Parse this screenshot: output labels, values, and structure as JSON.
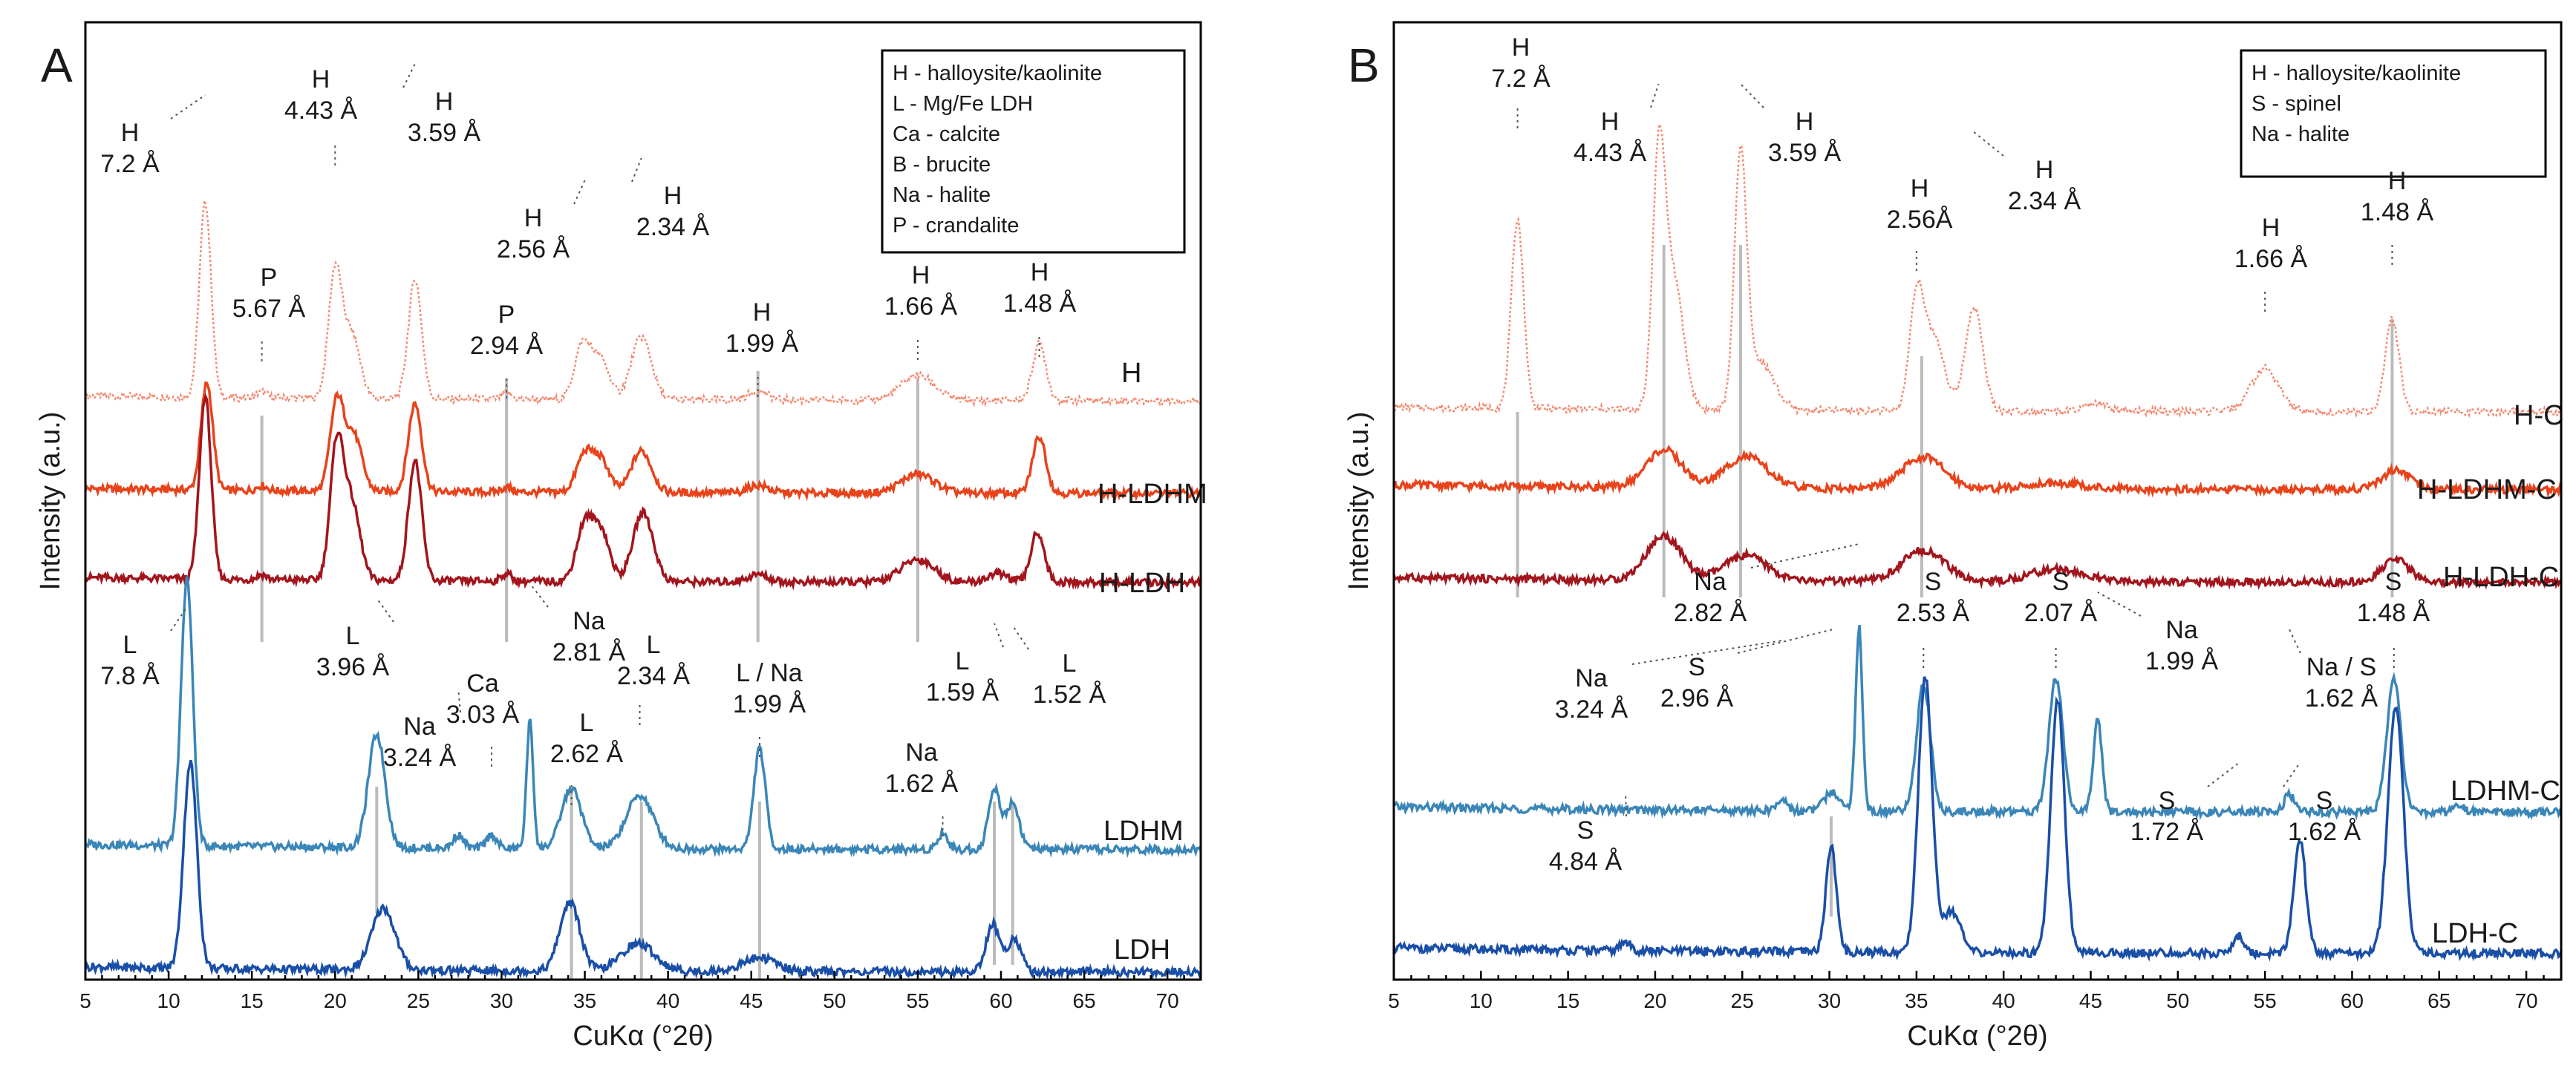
{
  "figure": {
    "colors": {
      "H": "#f28b73",
      "HLDHM": "#e8431b",
      "HLDH": "#a3151d",
      "LDHM": "#3b86b8",
      "LDH": "#1a4fa8"
    }
  },
  "chart_data": [
    {
      "type": "line",
      "panel": "A",
      "xlabel": "CuKα (°2θ)",
      "ylabel": "Intensity (a.u.)",
      "xlim": [
        5,
        72
      ],
      "xticks": [
        5,
        10,
        15,
        20,
        25,
        30,
        35,
        40,
        45,
        50,
        55,
        60,
        65,
        70
      ],
      "legend": {
        "placement": "top-right",
        "entries": [
          "H - halloysite/kaolinite",
          "L - Mg/Fe LDH",
          "Ca - calcite",
          "B - brucite",
          "Na - halite",
          "P - crandalite"
        ]
      },
      "series": [
        {
          "name": "H",
          "label": "H",
          "color_key": "H",
          "dashed": true,
          "baseline": 0.0,
          "peaks": [
            [
              12.2,
              1.55,
              0.35
            ],
            [
              15.6,
              0.05,
              0.3
            ],
            [
              20.0,
              1.0,
              0.4
            ],
            [
              21.0,
              0.5,
              0.5
            ],
            [
              24.8,
              0.95,
              0.4
            ],
            [
              30.3,
              0.05,
              0.3
            ],
            [
              34.9,
              0.45,
              0.5
            ],
            [
              36.0,
              0.3,
              0.5
            ],
            [
              38.4,
              0.5,
              0.6
            ],
            [
              45.4,
              0.07,
              0.6
            ],
            [
              55.0,
              0.2,
              1.0
            ],
            [
              62.3,
              0.45,
              0.4
            ]
          ]
        },
        {
          "name": "H-LDHM",
          "label": "H-LDHM",
          "color_key": "HLDHM",
          "dashed": false,
          "baseline": 0.0,
          "peaks": [
            [
              12.3,
              0.85,
              0.35
            ],
            [
              15.6,
              0.04,
              0.3
            ],
            [
              20.1,
              0.7,
              0.4
            ],
            [
              21.1,
              0.45,
              0.5
            ],
            [
              24.8,
              0.7,
              0.4
            ],
            [
              30.3,
              0.04,
              0.3
            ],
            [
              35.0,
              0.3,
              0.5
            ],
            [
              36.0,
              0.24,
              0.5
            ],
            [
              38.4,
              0.33,
              0.6
            ],
            [
              45.4,
              0.06,
              0.6
            ],
            [
              55.0,
              0.15,
              1.0
            ],
            [
              62.3,
              0.45,
              0.4
            ]
          ]
        },
        {
          "name": "H-LDH",
          "label": "H-LDH",
          "color_key": "HLDH",
          "dashed": false,
          "baseline": 0.0,
          "peaks": [
            [
              12.2,
              1.45,
              0.35
            ],
            [
              15.6,
              0.04,
              0.3
            ],
            [
              20.1,
              1.05,
              0.4
            ],
            [
              21.0,
              0.6,
              0.5
            ],
            [
              24.8,
              0.95,
              0.4
            ],
            [
              30.3,
              0.06,
              0.3
            ],
            [
              35.0,
              0.45,
              0.5
            ],
            [
              36.0,
              0.38,
              0.5
            ],
            [
              38.5,
              0.55,
              0.6
            ],
            [
              45.4,
              0.06,
              0.6
            ],
            [
              55.0,
              0.18,
              1.0
            ],
            [
              59.8,
              0.07,
              0.6
            ],
            [
              62.2,
              0.4,
              0.4
            ]
          ]
        },
        {
          "name": "LDHM",
          "label": "LDHM",
          "color_key": "LDHM",
          "dashed": false,
          "baseline": 0.0,
          "peaks": [
            [
              11.1,
              2.0,
              0.35
            ],
            [
              22.5,
              0.85,
              0.5
            ],
            [
              27.4,
              0.1,
              0.3
            ],
            [
              29.4,
              0.1,
              0.3
            ],
            [
              31.7,
              0.95,
              0.2
            ],
            [
              34.2,
              0.45,
              0.6
            ],
            [
              38.3,
              0.4,
              0.8
            ],
            [
              45.5,
              0.75,
              0.35
            ],
            [
              56.5,
              0.12,
              0.3
            ],
            [
              59.6,
              0.45,
              0.35
            ],
            [
              60.7,
              0.35,
              0.4
            ]
          ]
        },
        {
          "name": "LDH",
          "label": "LDH",
          "color_key": "LDH",
          "dashed": false,
          "baseline": 0.0,
          "peaks": [
            [
              11.3,
              1.5,
              0.4
            ],
            [
              22.9,
              0.45,
              0.7
            ],
            [
              34.1,
              0.5,
              0.6
            ],
            [
              38.2,
              0.2,
              1.0
            ],
            [
              45.5,
              0.1,
              1.0
            ],
            [
              59.5,
              0.35,
              0.4
            ],
            [
              60.8,
              0.25,
              0.4
            ]
          ]
        }
      ],
      "ref_lines": [
        15.6,
        30.3,
        45.4,
        55.0,
        22.5,
        34.2,
        38.4,
        45.5,
        59.6,
        60.7
      ],
      "annotations": [
        {
          "id": "a1",
          "lines": [
            "H",
            "7.2 Å"
          ],
          "peak_x": 12.2
        },
        {
          "id": "a2",
          "lines": [
            "H",
            "4.43 Å"
          ],
          "peak_x": 20.0
        },
        {
          "id": "a3",
          "lines": [
            "H",
            "3.59 Å"
          ],
          "peak_x": 24.8
        },
        {
          "id": "a4",
          "lines": [
            "P",
            "5.67 Å"
          ],
          "peak_x": 15.6
        },
        {
          "id": "a5",
          "lines": [
            "P",
            "2.94 Å"
          ],
          "peak_x": 30.3
        },
        {
          "id": "a6",
          "lines": [
            "H",
            "2.56 Å"
          ],
          "peak_x": 35.0
        },
        {
          "id": "a7",
          "lines": [
            "H",
            "2.34 Å"
          ],
          "peak_x": 38.4
        },
        {
          "id": "a8",
          "lines": [
            "H",
            "1.99 Å"
          ],
          "peak_x": 45.4
        },
        {
          "id": "a9",
          "lines": [
            "H",
            "1.66 Å"
          ],
          "peak_x": 55.0
        },
        {
          "id": "a10",
          "lines": [
            "H",
            "1.48 Å"
          ],
          "peak_x": 62.3
        },
        {
          "id": "a11",
          "lines": [
            "L",
            "7.8 Å"
          ],
          "peak_x": 11.1
        },
        {
          "id": "a12",
          "lines": [
            "L",
            "3.96 Å"
          ],
          "peak_x": 22.5
        },
        {
          "id": "a13",
          "lines": [
            "Na",
            "3.24 Å"
          ],
          "peak_x": 27.4
        },
        {
          "id": "a14",
          "lines": [
            "Ca",
            "3.03 Å"
          ],
          "peak_x": 29.4
        },
        {
          "id": "a15",
          "lines": [
            "Na",
            "2.81 Å"
          ],
          "peak_x": 31.7
        },
        {
          "id": "a16",
          "lines": [
            "L",
            "2.62 Å"
          ],
          "peak_x": 34.2
        },
        {
          "id": "a17",
          "lines": [
            "L",
            "2.34 Å"
          ],
          "peak_x": 38.3
        },
        {
          "id": "a18",
          "lines": [
            "L / Na",
            "1.99 Å"
          ],
          "peak_x": 45.5
        },
        {
          "id": "a19",
          "lines": [
            "Na",
            "1.62 Å"
          ],
          "peak_x": 56.5
        },
        {
          "id": "a20",
          "lines": [
            "L",
            "1.59 Å"
          ],
          "peak_x": 59.6
        },
        {
          "id": "a21",
          "lines": [
            "L",
            "1.52 Å"
          ],
          "peak_x": 60.7
        }
      ]
    },
    {
      "type": "line",
      "panel": "B",
      "xlabel": "CuKα (°2θ)",
      "ylabel": "Intensity (a.u.)",
      "xlim": [
        5,
        72
      ],
      "xticks": [
        5,
        10,
        15,
        20,
        25,
        30,
        35,
        40,
        45,
        50,
        55,
        60,
        65,
        70
      ],
      "legend": {
        "placement": "top-right",
        "entries": [
          "H - halloysite/kaolinite",
          "S - spinel",
          "Na - halite"
        ]
      },
      "series": [
        {
          "name": "H-C",
          "label": "H-C",
          "color_key": "H",
          "dashed": true,
          "baseline": 0.0,
          "peaks": [
            [
              12.1,
              1.55,
              0.35
            ],
            [
              20.2,
              1.85,
              0.35
            ],
            [
              21.0,
              1.1,
              0.6
            ],
            [
              24.9,
              2.0,
              0.35
            ],
            [
              26.0,
              0.4,
              0.8
            ],
            [
              35.0,
              0.9,
              0.4
            ],
            [
              36.0,
              0.6,
              0.6
            ],
            [
              38.3,
              0.85,
              0.5
            ],
            [
              45.3,
              0.06,
              0.6
            ],
            [
              55.0,
              0.35,
              0.8
            ],
            [
              62.3,
              0.75,
              0.4
            ]
          ]
        },
        {
          "name": "H-LDHM-C",
          "label": "H-LDHM-C",
          "color_key": "HLDHM",
          "dashed": false,
          "baseline": 0.0,
          "peaks": [
            [
              20.5,
              0.3,
              1.0
            ],
            [
              25.2,
              0.25,
              1.2
            ],
            [
              35.4,
              0.25,
              1.2
            ],
            [
              43.0,
              0.05,
              1.5
            ],
            [
              62.5,
              0.15,
              0.8
            ]
          ]
        },
        {
          "name": "H-LDH-C",
          "label": "H-LDH-C",
          "color_key": "HLDH",
          "dashed": false,
          "baseline": 0.0,
          "peaks": [
            [
              20.5,
              0.35,
              1.0
            ],
            [
              25.2,
              0.2,
              1.2
            ],
            [
              35.4,
              0.25,
              1.2
            ],
            [
              43.0,
              0.1,
              1.5
            ],
            [
              62.5,
              0.18,
              0.8
            ]
          ]
        },
        {
          "name": "LDHM-C",
          "label": "LDHM-C",
          "color_key": "LDHM",
          "dashed": false,
          "baseline": 0.0,
          "peaks": [
            [
              27.3,
              0.08,
              0.3
            ],
            [
              30.2,
              0.13,
              0.5
            ],
            [
              31.7,
              1.3,
              0.2
            ],
            [
              35.4,
              0.9,
              0.4
            ],
            [
              43.0,
              0.95,
              0.4
            ],
            [
              45.4,
              0.65,
              0.25
            ],
            [
              56.4,
              0.12,
              0.3
            ],
            [
              62.4,
              0.95,
              0.4
            ],
            [
              66.2,
              0.04,
              0.3
            ]
          ]
        },
        {
          "name": "LDH-C",
          "label": "LDH-C",
          "color_key": "LDH",
          "dashed": false,
          "baseline": 0.0,
          "peaks": [
            [
              18.3,
              0.06,
              0.3
            ],
            [
              30.1,
              0.75,
              0.3
            ],
            [
              35.5,
              1.95,
              0.4
            ],
            [
              37.0,
              0.3,
              0.5
            ],
            [
              43.1,
              1.8,
              0.4
            ],
            [
              53.5,
              0.12,
              0.3
            ],
            [
              57.0,
              0.8,
              0.35
            ],
            [
              62.5,
              1.75,
              0.45
            ]
          ]
        }
      ],
      "ref_lines": [
        12.1,
        20.5,
        24.9,
        35.3,
        62.3,
        30.1
      ],
      "annotations": [
        {
          "id": "b1",
          "lines": [
            "H",
            "7.2 Å"
          ],
          "peak_x": 12.1
        },
        {
          "id": "b2",
          "lines": [
            "H",
            "4.43 Å"
          ],
          "peak_x": 20.2
        },
        {
          "id": "b3",
          "lines": [
            "H",
            "3.59 Å"
          ],
          "peak_x": 24.9
        },
        {
          "id": "b4",
          "lines": [
            "H",
            "2.56Å"
          ],
          "peak_x": 35.0
        },
        {
          "id": "b5",
          "lines": [
            "H",
            "2.34 Å"
          ],
          "peak_x": 38.3
        },
        {
          "id": "b6",
          "lines": [
            "H",
            "1.66 Å"
          ],
          "peak_x": 55.0
        },
        {
          "id": "b7",
          "lines": [
            "H",
            "1.48 Å"
          ],
          "peak_x": 62.3
        },
        {
          "id": "b8",
          "lines": [
            "Na",
            "2.82 Å"
          ],
          "peak_x": 31.7
        },
        {
          "id": "b9",
          "lines": [
            "S",
            "2.53 Å"
          ],
          "peak_x": 35.4
        },
        {
          "id": "b10",
          "lines": [
            "S",
            "2.07 Å"
          ],
          "peak_x": 43.0
        },
        {
          "id": "b11",
          "lines": [
            "Na",
            "1.99 Å"
          ],
          "peak_x": 45.4
        },
        {
          "id": "b12",
          "lines": [
            "S",
            "1.48 Å"
          ],
          "peak_x": 62.4
        },
        {
          "id": "b13",
          "lines": [
            "Na",
            "3.24 Å"
          ],
          "peak_x": 27.3
        },
        {
          "id": "b14",
          "lines": [
            "S",
            "2.96 Å"
          ],
          "peak_x": 30.2
        },
        {
          "id": "b15",
          "lines": [
            "Na / S",
            "1.62 Å"
          ],
          "peak_x": 56.4
        },
        {
          "id": "b16",
          "lines": [
            "S",
            "4.84 Å"
          ],
          "peak_x": 18.3
        },
        {
          "id": "b17",
          "lines": [
            "S",
            "1.72 Å"
          ],
          "peak_x": 53.5
        },
        {
          "id": "b18",
          "lines": [
            "S",
            "1.62 Å"
          ],
          "peak_x": 57.0
        }
      ]
    }
  ]
}
